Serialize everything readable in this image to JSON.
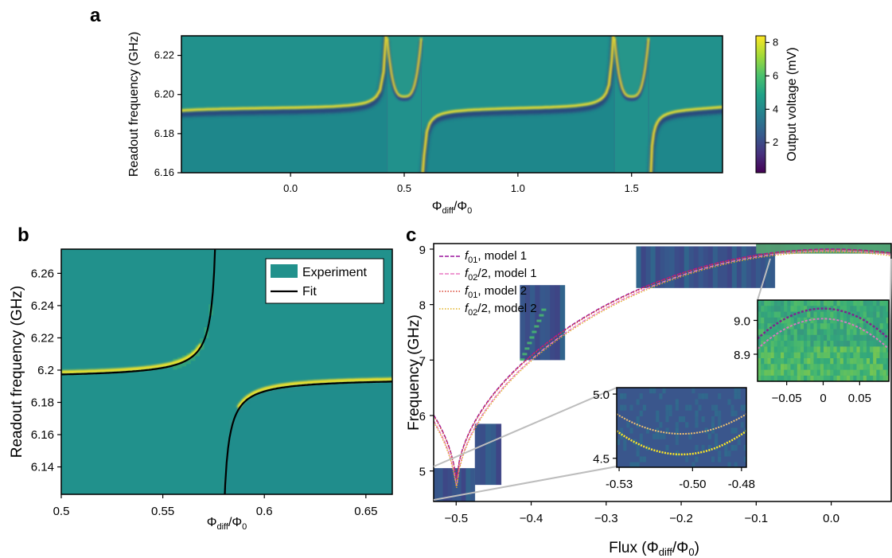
{
  "panels": {
    "a": {
      "label": "a"
    },
    "b": {
      "label": "b"
    },
    "c": {
      "label": "c"
    }
  },
  "colormap": [
    "#440154",
    "#46327e",
    "#365c8d",
    "#277f8e",
    "#1fa187",
    "#4ac16d",
    "#a0da39",
    "#fde725"
  ],
  "chart_data": [
    {
      "panel": "a",
      "type": "heatmap",
      "xlabel_main": "Φ",
      "xlabel_sub": "diff",
      "xlabel_tail": "/Φ",
      "xlabel_sub2": "0",
      "ylabel": "Readout frequency (GHz)",
      "x_ticks": [
        "0.0",
        "0.5",
        "1.0",
        "1.5"
      ],
      "x_tick_values": [
        0.0,
        0.5,
        1.0,
        1.5
      ],
      "y_ticks": [
        "6.16",
        "6.18",
        "6.20",
        "6.22"
      ],
      "y_tick_values": [
        6.16,
        6.18,
        6.2,
        6.22
      ],
      "xlim": [
        -0.48,
        1.9
      ],
      "ylim": [
        6.16,
        6.23
      ],
      "resonance_freq": 6.193,
      "anticrossing_centers": [
        0.5,
        1.5
      ],
      "anticrossing_min": 6.199,
      "colorbar": {
        "label": "Output voltage (mV)",
        "ticks": [
          "2",
          "4",
          "6",
          "8"
        ],
        "tick_values": [
          2,
          4,
          6,
          8
        ],
        "range": [
          0.2,
          8.4
        ]
      }
    },
    {
      "panel": "b",
      "type": "heatmap",
      "xlabel_main": "Φ",
      "xlabel_sub": "diff",
      "xlabel_tail": "/Φ",
      "xlabel_sub2": "0",
      "ylabel": "Readout frequency (GHz)",
      "x_ticks": [
        "0.5",
        "0.55",
        "0.6",
        "0.65"
      ],
      "x_tick_values": [
        0.5,
        0.55,
        0.6,
        0.65
      ],
      "y_ticks": [
        "6.14",
        "6.16",
        "6.18",
        "6.2",
        "6.22",
        "6.24",
        "6.26"
      ],
      "y_tick_values": [
        6.14,
        6.16,
        6.18,
        6.2,
        6.22,
        6.24,
        6.26
      ],
      "xlim": [
        0.5,
        0.663
      ],
      "ylim": [
        6.123,
        6.275
      ],
      "fit_asymptote": 0.578,
      "resonator_freq": 6.195,
      "legend": [
        {
          "label": "Experiment",
          "color": "#21918c"
        },
        {
          "label": "Fit",
          "color": "#000000"
        }
      ],
      "legend_position": "top-right"
    },
    {
      "panel": "c",
      "type": "line",
      "xlabel": "Flux (Φ",
      "xlabel_sub": "diff",
      "xlabel_tail": "/Φ",
      "xlabel_sub2": "0",
      "xlabel_close": ")",
      "ylabel": "Frequency (GHz)",
      "x_ticks": [
        "−0.5",
        "−0.4",
        "−0.3",
        "−0.2",
        "−0.1",
        "0.0"
      ],
      "x_tick_values": [
        -0.5,
        -0.4,
        -0.3,
        -0.2,
        -0.1,
        0.0
      ],
      "y_ticks": [
        "5",
        "6",
        "7",
        "8",
        "9"
      ],
      "y_tick_values": [
        5,
        6,
        7,
        8,
        9
      ],
      "xlim": [
        -0.53,
        0.08
      ],
      "ylim": [
        4.45,
        9.1
      ],
      "series": [
        {
          "name_italic": "f",
          "name_sub": "01",
          "name_tail": ", model 1",
          "color": "#9c179e",
          "dash": "5,2",
          "fmax": 9.0,
          "fmin": 4.69
        },
        {
          "name_italic": "f",
          "name_sub": "02",
          "name_tail": "/2, model 1",
          "color": "#e879c4",
          "dash": "5,2",
          "fmax": 8.97,
          "fmin": 4.55
        },
        {
          "name_italic": "f",
          "name_sub": "01",
          "name_tail": ", model 2",
          "color": "#d9402f",
          "dash": "1.5,2",
          "fmax": 8.99,
          "fmin": 4.67
        },
        {
          "name_italic": "f",
          "name_sub": "02",
          "name_tail": "/2, model 2",
          "color": "#e0b020",
          "dash": "1.5,2",
          "fmax": 8.95,
          "fmin": 4.52
        }
      ],
      "data_windows": [
        {
          "x": [
            -0.53,
            -0.475
          ],
          "y": [
            4.45,
            5.05
          ]
        },
        {
          "x": [
            -0.475,
            -0.44
          ],
          "y": [
            4.75,
            5.85
          ]
        },
        {
          "x": [
            -0.415,
            -0.355
          ],
          "y": [
            7.0,
            8.35
          ]
        },
        {
          "x": [
            -0.26,
            -0.075
          ],
          "y": [
            8.3,
            9.05
          ]
        },
        {
          "x": [
            -0.1,
            0.08
          ],
          "y": [
            8.92,
            9.1
          ]
        }
      ],
      "inset_low": {
        "x_ticks": [
          "-0.53",
          "-0.50",
          "-0.48"
        ],
        "x_tick_values": [
          -0.53,
          -0.5,
          -0.48
        ],
        "y_ticks": [
          "5.0",
          "4.5"
        ],
        "y_tick_values": [
          5.0,
          4.5
        ],
        "xlim": [
          -0.531,
          -0.478
        ],
        "ylim": [
          4.43,
          5.05
        ]
      },
      "inset_high": {
        "x_ticks": [
          "−0.05",
          "0",
          "0.05"
        ],
        "x_tick_values": [
          -0.05,
          0,
          0.05
        ],
        "y_ticks": [
          "9.0",
          "8.9"
        ],
        "y_tick_values": [
          9.0,
          8.9
        ],
        "xlim": [
          -0.09,
          0.09
        ],
        "ylim": [
          8.82,
          9.06
        ]
      }
    }
  ]
}
